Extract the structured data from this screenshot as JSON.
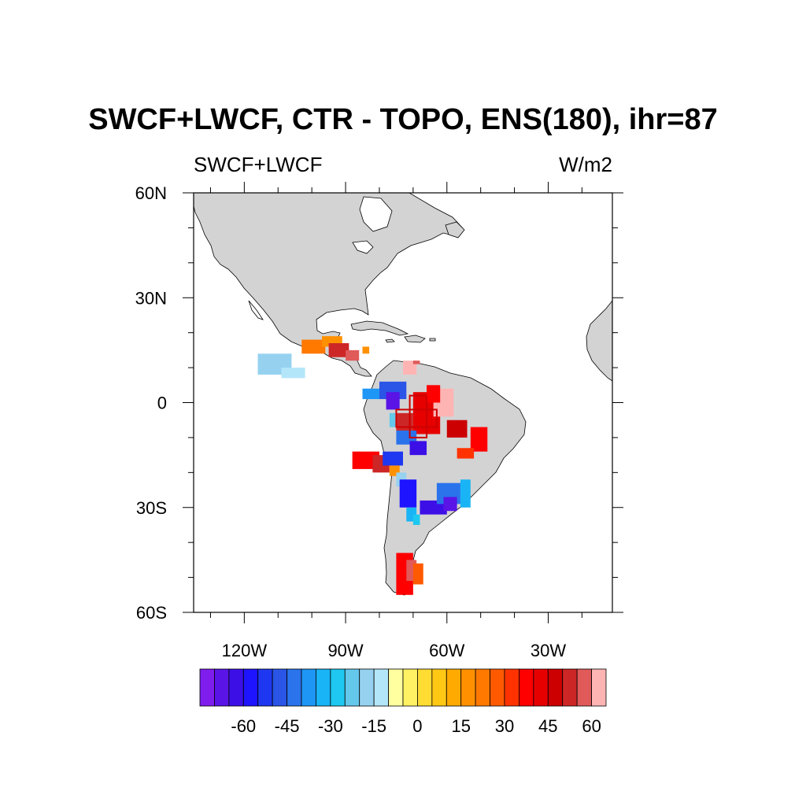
{
  "title": "SWCF+LWCF, CTR - TOPO, ENS(180), ihr=87",
  "left_string": "SWCF+LWCF",
  "right_string": "W/m2",
  "map": {
    "lon_range": [
      -135,
      -11
    ],
    "lat_range": [
      -60,
      60
    ],
    "land_color": "#d3d3d3",
    "lat_labels": [
      {
        "value": 60,
        "label": "60N"
      },
      {
        "value": 30,
        "label": "30N"
      },
      {
        "value": 0,
        "label": "0"
      },
      {
        "value": -30,
        "label": "30S"
      },
      {
        "value": -60,
        "label": "60S"
      }
    ],
    "lon_labels": [
      {
        "value": -120,
        "label": "120W"
      },
      {
        "value": -90,
        "label": "90W"
      },
      {
        "value": -60,
        "label": "60W"
      },
      {
        "value": -30,
        "label": "30W"
      }
    ],
    "box_outlines": [
      {
        "lon": [
          -71,
          -66
        ],
        "lat": [
          -10,
          2
        ]
      },
      {
        "lon": [
          -75,
          -63
        ],
        "lat": [
          -7,
          -2
        ]
      }
    ]
  },
  "colorbar": {
    "colors": [
      "#7f1ded",
      "#5a14e6",
      "#3c0fe6",
      "#1e14ff",
      "#1e37f0",
      "#2a55e6",
      "#2a73eb",
      "#1e96f5",
      "#19b4f5",
      "#1ec8f0",
      "#64c8eb",
      "#96d2f0",
      "#b4e6fa",
      "#ffffa0",
      "#fff064",
      "#ffdc32",
      "#ffc814",
      "#ffaa00",
      "#ff9100",
      "#ff7800",
      "#ff5a00",
      "#ff3200",
      "#ff0000",
      "#e60000",
      "#cc0000",
      "#cd2626",
      "#e05a5a",
      "#ffb4b4"
    ],
    "labels": [
      {
        "index": 3,
        "label": "-60"
      },
      {
        "index": 6,
        "label": "-45"
      },
      {
        "index": 9,
        "label": "-30"
      },
      {
        "index": 12,
        "label": "-15"
      },
      {
        "index": 15,
        "label": "0"
      },
      {
        "index": 18,
        "label": "15"
      },
      {
        "index": 21,
        "label": "30"
      },
      {
        "index": 24,
        "label": "45"
      },
      {
        "index": 27,
        "label": "60"
      }
    ]
  },
  "field_cells": [
    {
      "lon": [
        -103,
        -96
      ],
      "lat": [
        14,
        18
      ],
      "value": 25
    },
    {
      "lon": [
        -97,
        -91
      ],
      "lat": [
        16,
        19
      ],
      "value": 22
    },
    {
      "lon": [
        -95,
        -89
      ],
      "lat": [
        13,
        17
      ],
      "value": 55
    },
    {
      "lon": [
        -90,
        -86
      ],
      "lat": [
        12,
        15
      ],
      "value": 62
    },
    {
      "lon": [
        -85,
        -83
      ],
      "lat": [
        14,
        16
      ],
      "value": 20
    },
    {
      "lon": [
        -116,
        -106
      ],
      "lat": [
        8,
        14
      ],
      "value": -12
    },
    {
      "lon": [
        -109,
        -102
      ],
      "lat": [
        7,
        10
      ],
      "value": -10
    },
    {
      "lon": [
        -73,
        -69
      ],
      "lat": [
        8,
        12
      ],
      "value": 70
    },
    {
      "lon": [
        -70,
        -68
      ],
      "lat": [
        11,
        12
      ],
      "value": 60
    },
    {
      "lon": [
        -80,
        -72
      ],
      "lat": [
        1,
        6
      ],
      "value": -45
    },
    {
      "lon": [
        -85,
        -80
      ],
      "lat": [
        1,
        4
      ],
      "value": -35
    },
    {
      "lon": [
        -78,
        -74
      ],
      "lat": [
        -2,
        3
      ],
      "value": -62
    },
    {
      "lon": [
        -77,
        -75
      ],
      "lat": [
        -7,
        -3
      ],
      "value": -20
    },
    {
      "lon": [
        -70,
        -62
      ],
      "lat": [
        -9,
        3
      ],
      "value": 45
    },
    {
      "lon": [
        -75,
        -70
      ],
      "lat": [
        -8,
        -3
      ],
      "value": 55
    },
    {
      "lon": [
        -64,
        -58
      ],
      "lat": [
        -4,
        4
      ],
      "value": 70
    },
    {
      "lon": [
        -66,
        -62
      ],
      "lat": [
        0,
        5
      ],
      "value": 40
    },
    {
      "lon": [
        -60,
        -54
      ],
      "lat": [
        -10,
        -5
      ],
      "value": 50
    },
    {
      "lon": [
        -53,
        -48
      ],
      "lat": [
        -14,
        -7
      ],
      "value": 40
    },
    {
      "lon": [
        -57,
        -52
      ],
      "lat": [
        -16,
        -13
      ],
      "value": 35
    },
    {
      "lon": [
        -75,
        -69
      ],
      "lat": [
        -12,
        -8
      ],
      "value": -40
    },
    {
      "lon": [
        -71,
        -66
      ],
      "lat": [
        -15,
        -11
      ],
      "value": -60
    },
    {
      "lon": [
        -88,
        -80
      ],
      "lat": [
        -19,
        -14
      ],
      "value": 42
    },
    {
      "lon": [
        -82,
        -77
      ],
      "lat": [
        -20,
        -15
      ],
      "value": 55
    },
    {
      "lon": [
        -79,
        -73
      ],
      "lat": [
        -18,
        -14
      ],
      "value": -50
    },
    {
      "lon": [
        -77,
        -74
      ],
      "lat": [
        -21,
        -18
      ],
      "value": 20
    },
    {
      "lon": [
        -75,
        -72
      ],
      "lat": [
        -24,
        -20
      ],
      "value": -15
    },
    {
      "lon": [
        -74,
        -69
      ],
      "lat": [
        -30,
        -22
      ],
      "value": -55
    },
    {
      "lon": [
        -72,
        -69
      ],
      "lat": [
        -34,
        -30
      ],
      "value": -30
    },
    {
      "lon": [
        -68,
        -60
      ],
      "lat": [
        -32,
        -28
      ],
      "value": -60
    },
    {
      "lon": [
        -63,
        -56
      ],
      "lat": [
        -29,
        -23
      ],
      "value": -40
    },
    {
      "lon": [
        -61,
        -57
      ],
      "lat": [
        -31,
        -27
      ],
      "value": -64
    },
    {
      "lon": [
        -56,
        -53
      ],
      "lat": [
        -30,
        -22
      ],
      "value": -30
    },
    {
      "lon": [
        -70,
        -68
      ],
      "lat": [
        -35,
        -32
      ],
      "value": -25
    },
    {
      "lon": [
        -75,
        -70
      ],
      "lat": [
        -55,
        -43
      ],
      "value": 40
    },
    {
      "lon": [
        -72,
        -69
      ],
      "lat": [
        -51,
        -45
      ],
      "value": 62
    },
    {
      "lon": [
        -70,
        -67
      ],
      "lat": [
        -52,
        -46
      ],
      "value": 32
    }
  ]
}
